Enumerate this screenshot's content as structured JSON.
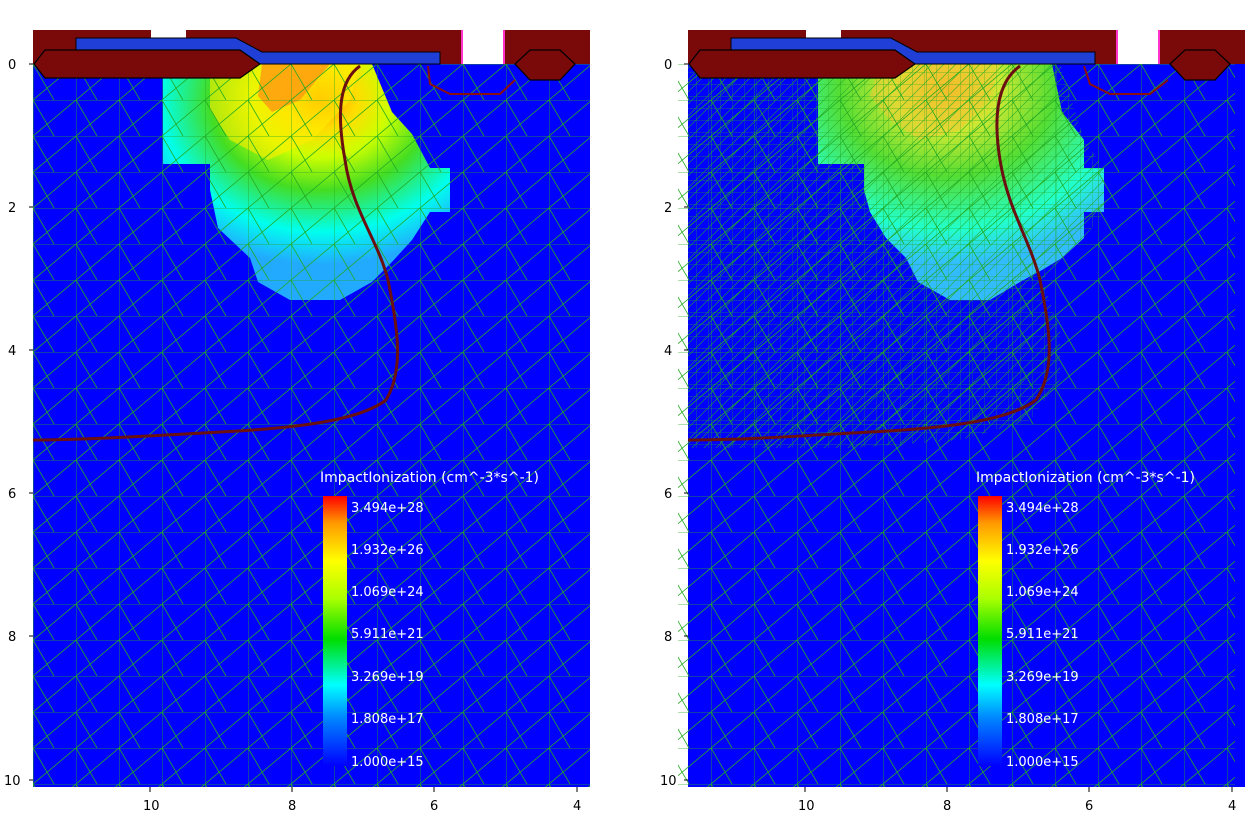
{
  "colors": {
    "background": "#ffffff",
    "silicon": "#0000ff",
    "mesh": "#22aa22",
    "oxide_dark": "#7a0a0a",
    "poly_blue": "#1f3fd6",
    "junction": "#6b1010",
    "pink_edge": "#ff33cc"
  },
  "panels": [
    {
      "name": "coarse-mesh",
      "colorbar": {
        "title": "ImpactIonization (cm^-3*s^-1)",
        "labels": [
          "3.494e+28",
          "1.932e+26",
          "1.069e+24",
          "5.911e+21",
          "3.269e+19",
          "1.808e+17",
          "1.000e+15"
        ]
      },
      "y_ticks": [
        "0",
        "2",
        "4",
        "6",
        "8",
        "10"
      ],
      "x_ticks": [
        "10",
        "8",
        "6",
        "4"
      ]
    },
    {
      "name": "refined-mesh",
      "colorbar": {
        "title": "ImpactIonization (cm^-3*s^-1)",
        "labels": [
          "3.494e+28",
          "1.932e+26",
          "1.069e+24",
          "5.911e+21",
          "3.269e+19",
          "1.808e+17",
          "1.000e+15"
        ]
      },
      "y_ticks": [
        "0",
        "2",
        "4",
        "6",
        "8",
        "10"
      ],
      "x_ticks": [
        "10",
        "8",
        "6",
        "4"
      ]
    }
  ]
}
